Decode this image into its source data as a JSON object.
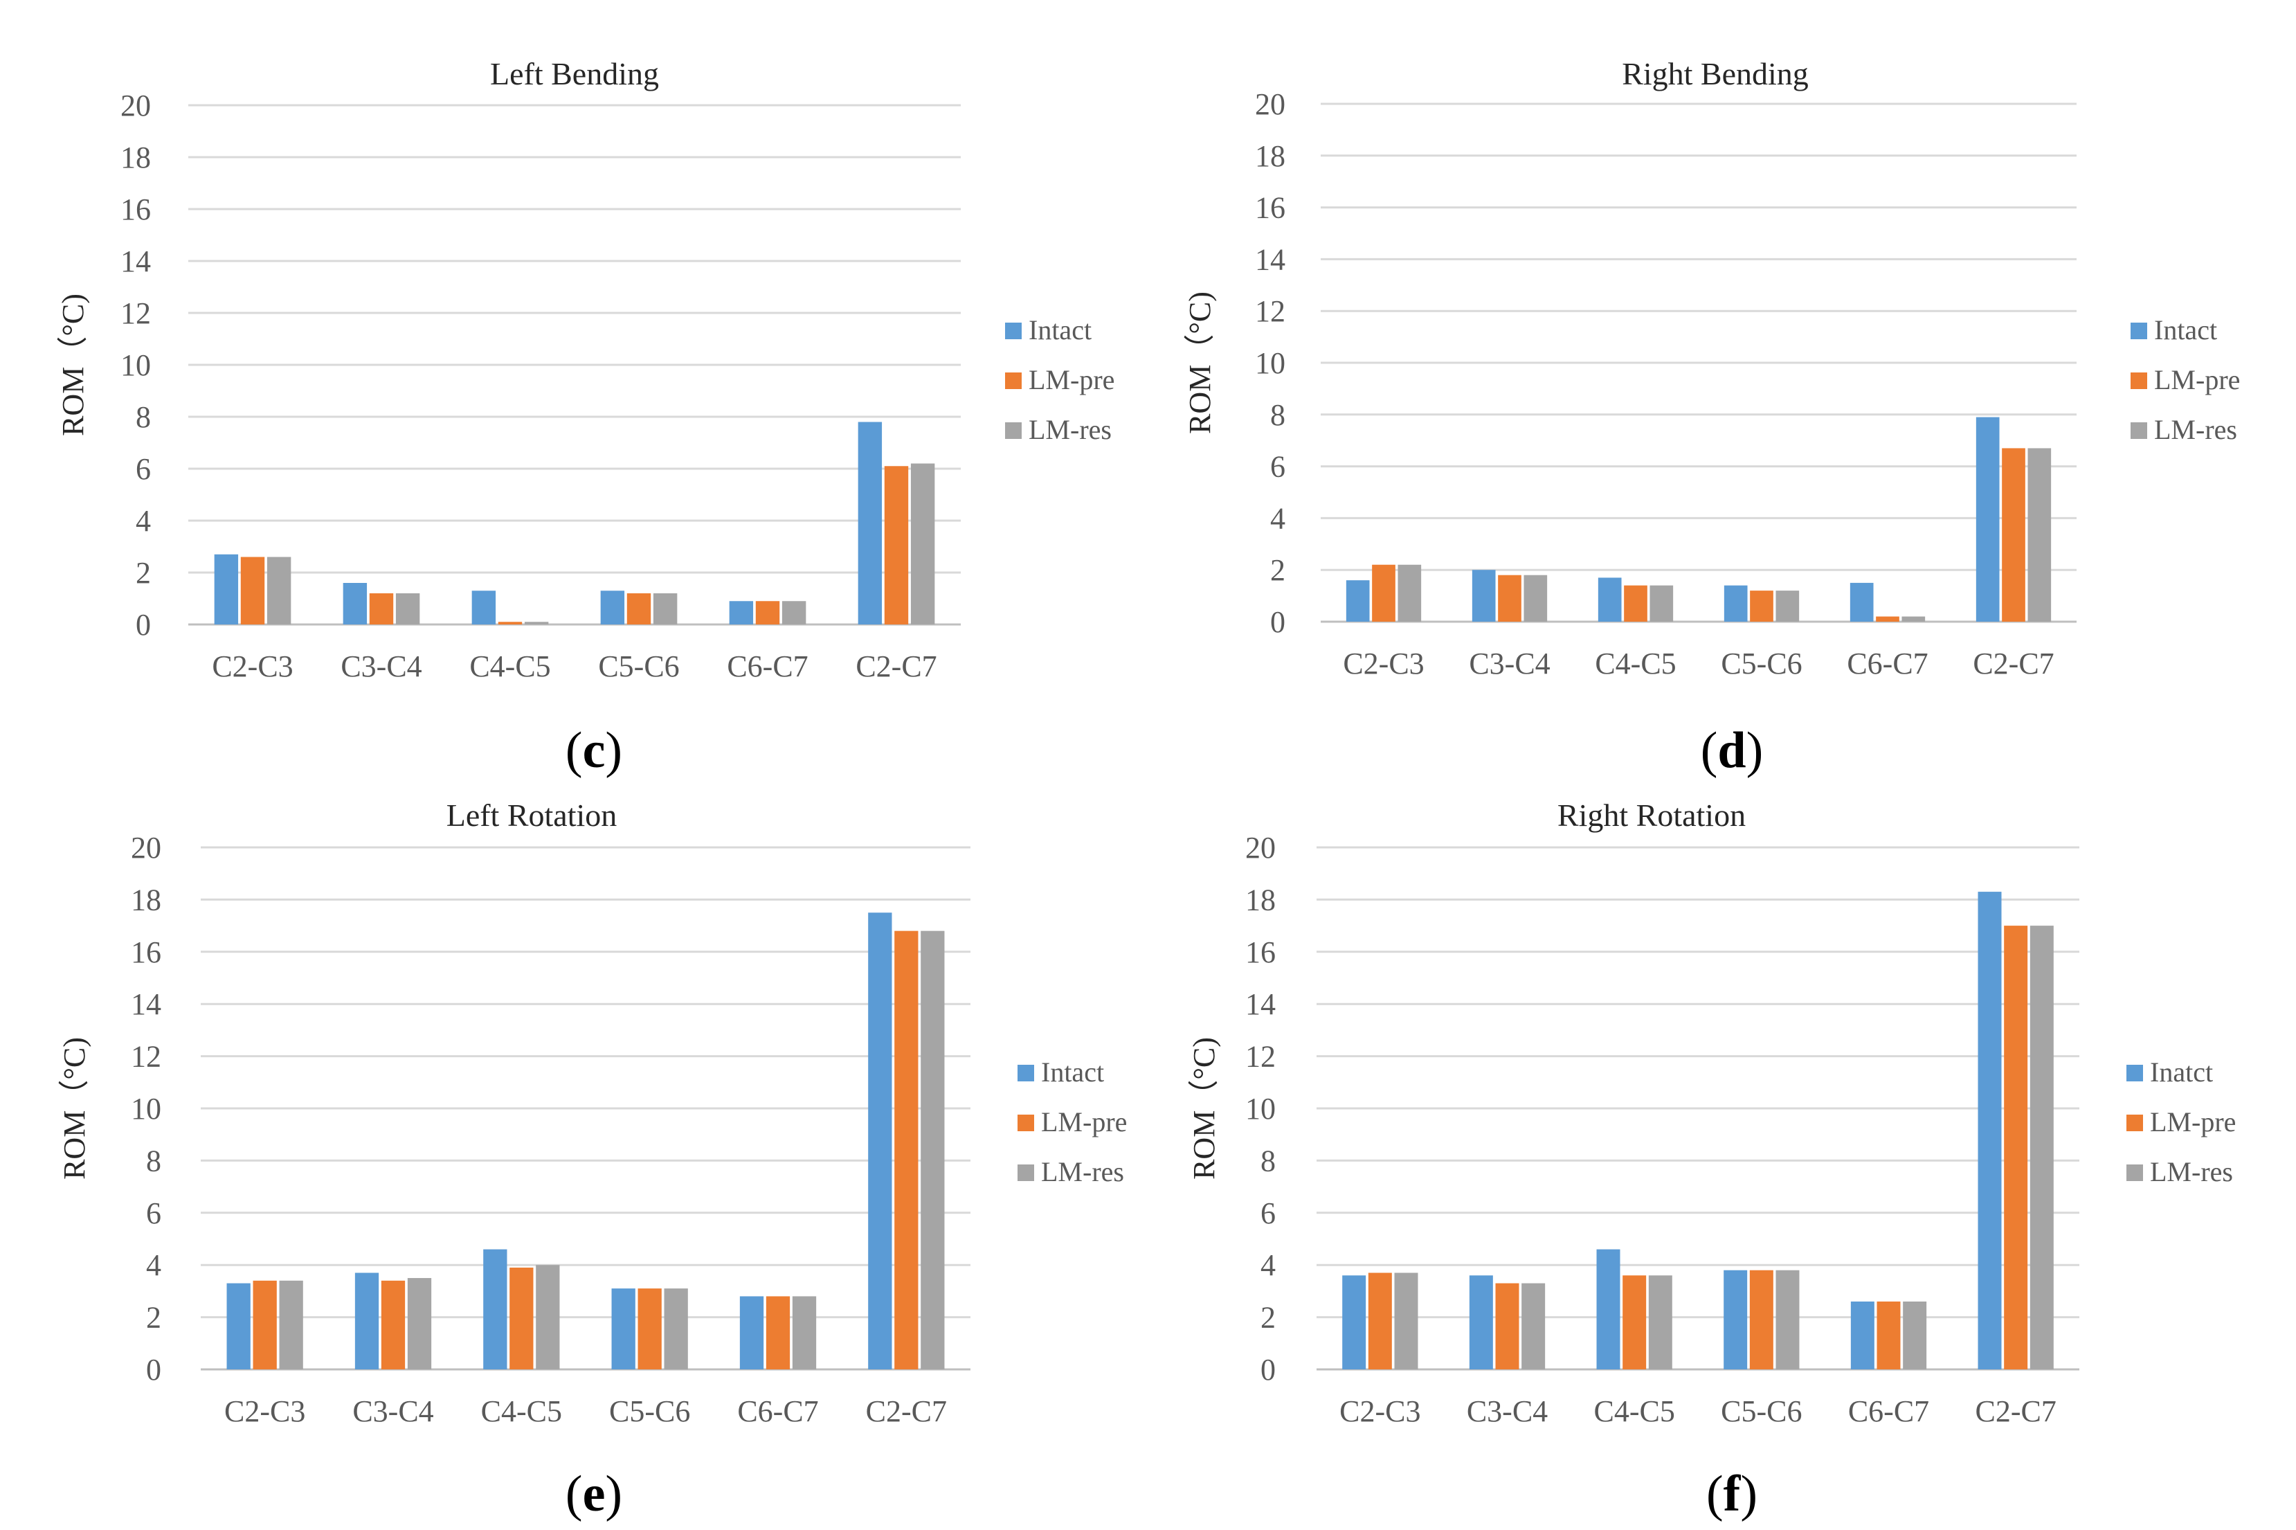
{
  "chart_data": [
    {
      "type": "bar",
      "panel_label": "c",
      "title": "Left Bending",
      "xlabel": "",
      "ylabel": "ROM（°C)",
      "ylim": [
        0,
        20
      ],
      "yticks": [
        0,
        2,
        4,
        6,
        8,
        10,
        12,
        14,
        16,
        18,
        20
      ],
      "categories": [
        "C2-C3",
        "C3-C4",
        "C4-C5",
        "C5-C6",
        "C6-C7",
        "C2-C7"
      ],
      "series": [
        {
          "name": "Intact",
          "color": "#5b9bd5",
          "values": [
            2.7,
            1.6,
            1.3,
            1.3,
            0.9,
            7.8
          ]
        },
        {
          "name": "LM-pre",
          "color": "#ed7d31",
          "values": [
            2.6,
            1.2,
            0.1,
            1.2,
            0.9,
            6.1
          ]
        },
        {
          "name": "LM-res",
          "color": "#a5a5a5",
          "values": [
            2.6,
            1.2,
            0.1,
            1.2,
            0.9,
            6.2
          ]
        }
      ],
      "legend": "right"
    },
    {
      "type": "bar",
      "panel_label": "d",
      "title": "Right Bending",
      "xlabel": "",
      "ylabel": "ROM（°C)",
      "ylim": [
        0,
        20
      ],
      "yticks": [
        0,
        2,
        4,
        6,
        8,
        10,
        12,
        14,
        16,
        18,
        20
      ],
      "categories": [
        "C2-C3",
        "C3-C4",
        "C4-C5",
        "C5-C6",
        "C6-C7",
        "C2-C7"
      ],
      "series": [
        {
          "name": "Intact",
          "color": "#5b9bd5",
          "values": [
            1.6,
            2.0,
            1.7,
            1.4,
            1.5,
            7.9
          ]
        },
        {
          "name": "LM-pre",
          "color": "#ed7d31",
          "values": [
            2.2,
            1.8,
            1.4,
            1.2,
            0.2,
            6.7
          ]
        },
        {
          "name": "LM-res",
          "color": "#a5a5a5",
          "values": [
            2.2,
            1.8,
            1.4,
            1.2,
            0.2,
            6.7
          ]
        }
      ],
      "legend": "right"
    },
    {
      "type": "bar",
      "panel_label": "e",
      "title": "Left Rotation",
      "xlabel": "",
      "ylabel": "ROM（°C)",
      "ylim": [
        0,
        20
      ],
      "yticks": [
        0,
        2,
        4,
        6,
        8,
        10,
        12,
        14,
        16,
        18,
        20
      ],
      "categories": [
        "C2-C3",
        "C3-C4",
        "C4-C5",
        "C5-C6",
        "C6-C7",
        "C2-C7"
      ],
      "series": [
        {
          "name": "Intact",
          "color": "#5b9bd5",
          "values": [
            3.3,
            3.7,
            4.6,
            3.1,
            2.8,
            17.5
          ]
        },
        {
          "name": "LM-pre",
          "color": "#ed7d31",
          "values": [
            3.4,
            3.4,
            3.9,
            3.1,
            2.8,
            16.8
          ]
        },
        {
          "name": "LM-res",
          "color": "#a5a5a5",
          "values": [
            3.4,
            3.5,
            4.0,
            3.1,
            2.8,
            16.8
          ]
        }
      ],
      "legend": "right"
    },
    {
      "type": "bar",
      "panel_label": "f",
      "title": "Right Rotation",
      "xlabel": "",
      "ylabel": "ROM（°C)",
      "ylim": [
        0,
        20
      ],
      "yticks": [
        0,
        2,
        4,
        6,
        8,
        10,
        12,
        14,
        16,
        18,
        20
      ],
      "categories": [
        "C2-C3",
        "C3-C4",
        "C4-C5",
        "C5-C6",
        "C6-C7",
        "C2-C7"
      ],
      "series": [
        {
          "name": "Inatct",
          "color": "#5b9bd5",
          "values": [
            3.6,
            3.6,
            4.6,
            3.8,
            2.6,
            18.3
          ]
        },
        {
          "name": "LM-pre",
          "color": "#ed7d31",
          "values": [
            3.7,
            3.3,
            3.6,
            3.8,
            2.6,
            17.0
          ]
        },
        {
          "name": "LM-res",
          "color": "#a5a5a5",
          "values": [
            3.7,
            3.3,
            3.6,
            3.8,
            2.6,
            17.0
          ]
        }
      ],
      "legend": "right"
    }
  ]
}
